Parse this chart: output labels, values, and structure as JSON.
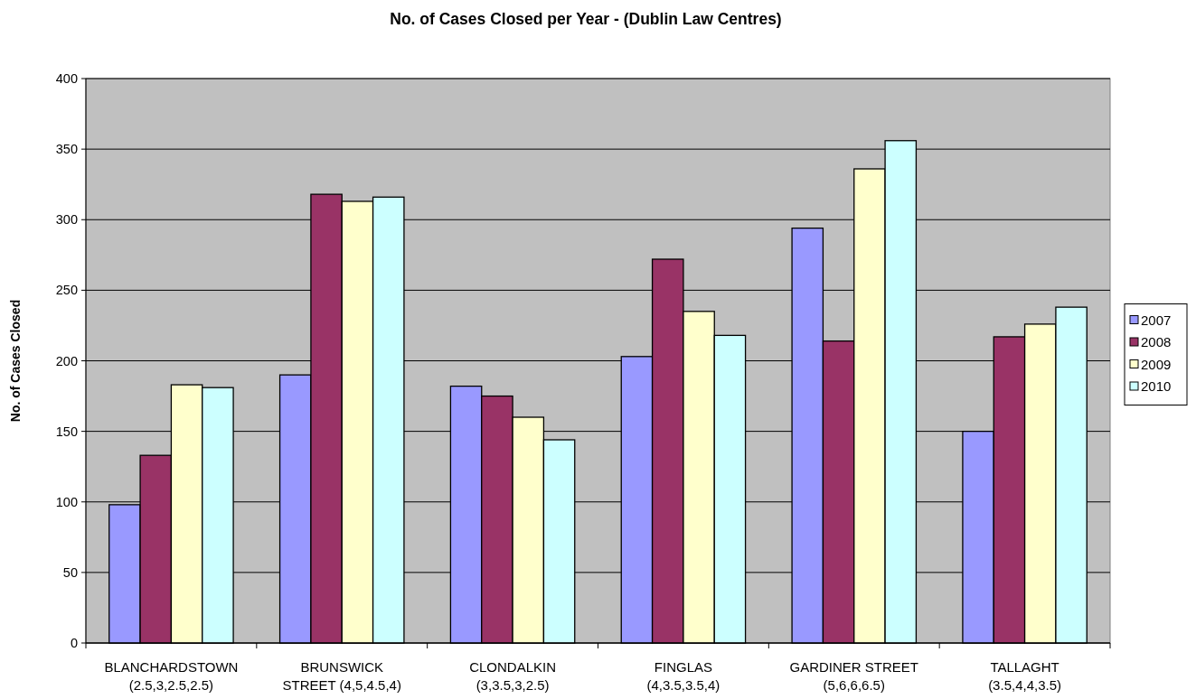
{
  "chart_data": {
    "type": "bar",
    "title": "No. of Cases Closed per Year - (Dublin Law Centres)",
    "ylabel": "No. of Cases Closed",
    "categories": [
      "BLANCHARDSTOWN\n(2.5,3,2.5,2.5)",
      "BRUNSWICK\nSTREET (4,5,4.5,4)",
      "CLONDALKIN\n(3,3.5,3,2.5)",
      "FINGLAS\n(4,3.5,3.5,4)",
      "GARDINER STREET\n(5,6,6,6.5)",
      "TALLAGHT\n(3.5,4,4,3.5)"
    ],
    "series": [
      {
        "name": "2007",
        "color": "#9999ff",
        "values": [
          98,
          190,
          182,
          203,
          294,
          150
        ]
      },
      {
        "name": "2008",
        "color": "#993366",
        "values": [
          133,
          318,
          175,
          272,
          214,
          217
        ]
      },
      {
        "name": "2009",
        "color": "#ffffcc",
        "values": [
          183,
          313,
          160,
          235,
          336,
          226
        ]
      },
      {
        "name": "2010",
        "color": "#ccffff",
        "values": [
          181,
          316,
          144,
          218,
          356,
          238
        ]
      }
    ],
    "ylim": [
      0,
      400
    ],
    "yticks": [
      0,
      50,
      100,
      150,
      200,
      250,
      300,
      350,
      400
    ],
    "grid": "y",
    "legend": "right"
  }
}
